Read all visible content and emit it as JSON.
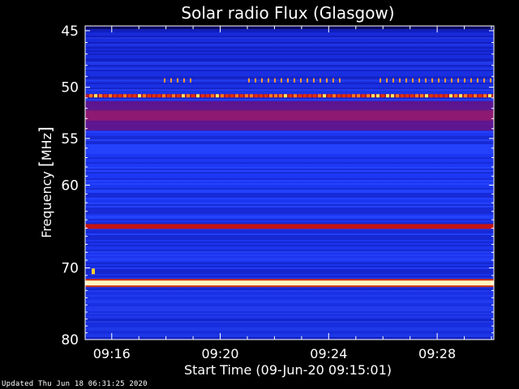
{
  "chart_data": {
    "type": "heatmap",
    "title": "Solar radio Flux (Glasgow)",
    "xlabel": "Start Time (09-Jun-20 09:15:01)",
    "ylabel_main": "Frequency ",
    "ylabel_unit": "MHz",
    "x_start": "09:15:01",
    "x_end": "09:30:05",
    "x_ticks": [
      "09:16",
      "09:20",
      "09:24",
      "09:28"
    ],
    "x_tick_minutes": [
      0.98,
      4.98,
      8.98,
      12.98
    ],
    "x_range_minutes": [
      0,
      15.07
    ],
    "y_ticks": [
      45,
      50,
      55,
      60,
      70,
      80
    ],
    "y_range": [
      44.6,
      80
    ],
    "y_scale": "log",
    "bands": [
      {
        "freq": 50.8,
        "type": "strong emission (intermittent)",
        "color": "#ffcf30"
      },
      {
        "freq": 49.4,
        "type": "intermittent ticks",
        "color": "#ff9a3a"
      },
      {
        "freq": 52.5,
        "type": "broad enhanced band",
        "color": "#a01a6e"
      },
      {
        "freq": 64.8,
        "type": "constant line",
        "color": "#c41414"
      },
      {
        "freq": 72.0,
        "type": "constant saturated line",
        "color": "#fff6c0"
      }
    ],
    "colors": {
      "background": "#000000",
      "low": "#1e3cff",
      "mid": "#1010b0",
      "high": "#c0180e",
      "peak": "#fff6c0"
    }
  },
  "footer": "Updated Thu Jun 18 06:31:25 2020"
}
